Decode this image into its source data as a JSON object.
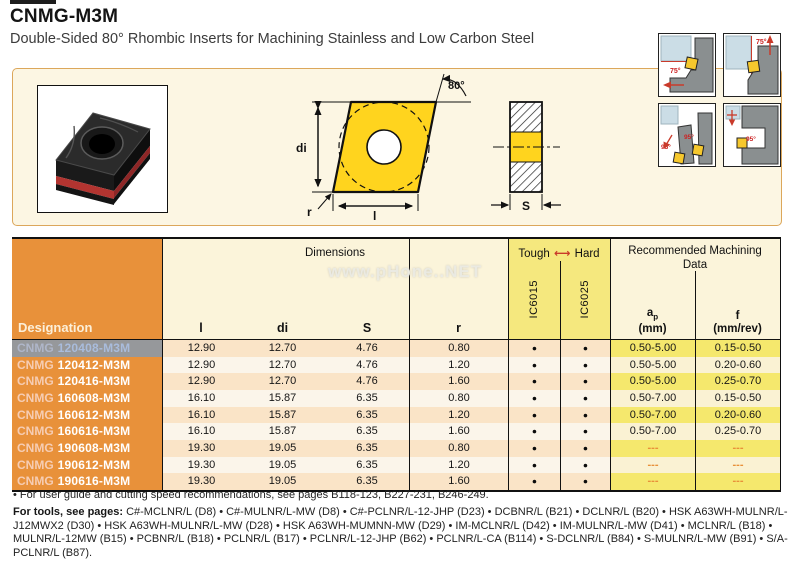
{
  "header": {
    "title": "CNMG-M3M",
    "subtitle": "Double-Sided 80° Rhombic Inserts for Machining Stainless and Low Carbon Steel"
  },
  "drawing": {
    "angle": "80°",
    "d_label": "di",
    "l_label": "l",
    "r_label": "r",
    "s_label": "S"
  },
  "panels": [
    {
      "angle": "75°"
    },
    {
      "angle": "75°"
    },
    {
      "angle": "95°",
      "angle2": "95°"
    },
    {
      "angle": "95°"
    }
  ],
  "watermark": "www.pHone..NET",
  "table": {
    "headers": {
      "designation": "Designation",
      "dimensions": "Dimensions",
      "dim_cols": [
        "l",
        "di",
        "S",
        "r"
      ],
      "tough": "Tough",
      "arrow": "⟷",
      "hard": "Hard",
      "grades": [
        "IC6015",
        "IC6025"
      ],
      "machining_line1": "Recommended  Machining",
      "machining_line2": "Data",
      "ap_a": "a",
      "ap_sub": "p",
      "ap_unit": "(mm)",
      "f_label": "f",
      "f_unit": "(mm/rev)"
    },
    "rows": [
      {
        "prefix": "CNMG",
        "code": "120408-M3M",
        "l": "12.90",
        "di": "12.70",
        "s": "4.76",
        "r": "0.80",
        "ic6015": "●",
        "ic6025": "●",
        "ap": "0.50-5.00",
        "f": "0.15-0.50",
        "selected": true
      },
      {
        "prefix": "CNMG",
        "code": "120412-M3M",
        "l": "12.90",
        "di": "12.70",
        "s": "4.76",
        "r": "1.20",
        "ic6015": "●",
        "ic6025": "●",
        "ap": "0.50-5.00",
        "f": "0.20-0.60",
        "selected": false
      },
      {
        "prefix": "CNMG",
        "code": "120416-M3M",
        "l": "12.90",
        "di": "12.70",
        "s": "4.76",
        "r": "1.60",
        "ic6015": "●",
        "ic6025": "●",
        "ap": "0.50-5.00",
        "f": "0.25-0.70",
        "selected": false
      },
      {
        "prefix": "CNMG",
        "code": "160608-M3M",
        "l": "16.10",
        "di": "15.87",
        "s": "6.35",
        "r": "0.80",
        "ic6015": "●",
        "ic6025": "●",
        "ap": "0.50-7.00",
        "f": "0.15-0.50",
        "selected": false
      },
      {
        "prefix": "CNMG",
        "code": "160612-M3M",
        "l": "16.10",
        "di": "15.87",
        "s": "6.35",
        "r": "1.20",
        "ic6015": "●",
        "ic6025": "●",
        "ap": "0.50-7.00",
        "f": "0.20-0.60",
        "selected": false
      },
      {
        "prefix": "CNMG",
        "code": "160616-M3M",
        "l": "16.10",
        "di": "15.87",
        "s": "6.35",
        "r": "1.60",
        "ic6015": "●",
        "ic6025": "●",
        "ap": "0.50-7.00",
        "f": "0.25-0.70",
        "selected": false
      },
      {
        "prefix": "CNMG",
        "code": "190608-M3M",
        "l": "19.30",
        "di": "19.05",
        "s": "6.35",
        "r": "0.80",
        "ic6015": "●",
        "ic6025": "●",
        "ap": "---",
        "f": "---",
        "selected": false
      },
      {
        "prefix": "CNMG",
        "code": "190612-M3M",
        "l": "19.30",
        "di": "19.05",
        "s": "6.35",
        "r": "1.20",
        "ic6015": "●",
        "ic6025": "●",
        "ap": "---",
        "f": "---",
        "selected": false
      },
      {
        "prefix": "CNMG",
        "code": "190616-M3M",
        "l": "19.30",
        "di": "19.05",
        "s": "6.35",
        "r": "1.60",
        "ic6015": "●",
        "ic6025": "●",
        "ap": "---",
        "f": "---",
        "selected": false
      }
    ]
  },
  "footnotes": {
    "user_guide": "• For user guide and cutting speed recommendations, see pages B118-123, B227-231, B246-249.",
    "tools_label": "For tools, see pages:",
    "tools_text": " C#-MCLNR/L (D8) • C#-MULNR/L-MW (D8) • C#-PCLNR/L-12-JHP (D23) • DCBNR/L (B21) • DCLNR/L (B20) • HSK A63WH-MULNR/L-J12MWX2 (D30) • HSK A63WH-MULNR/L-MW (D28) • HSK A63WH-MUMNN-MW (D29) • IM-MCLNR/L (D42) • IM-MULNR/L-MW (D41) • MCLNR/L (B18) • MULNR/L-12MW (B15) • PCBNR/L (B18) • PCLNR/L (B17) • PCLNR/L-12-JHP (B62) • PCLNR/L-CA (B114) • S-DCLNR/L (B84) • S-MULNR/L-MW (B91) • S/A-PCLNR/L (B87)."
  },
  "colors": {
    "orange": "#E8913A",
    "yellow_header": "#F5E87E",
    "yellow_cell": "#F5E86D",
    "cream": "#FBF4DA",
    "selection_gray": "#96989B",
    "selection_text": "#A9BCDC",
    "accent_red": "#C93A2A",
    "insert_yellow": "#FFD41E"
  }
}
